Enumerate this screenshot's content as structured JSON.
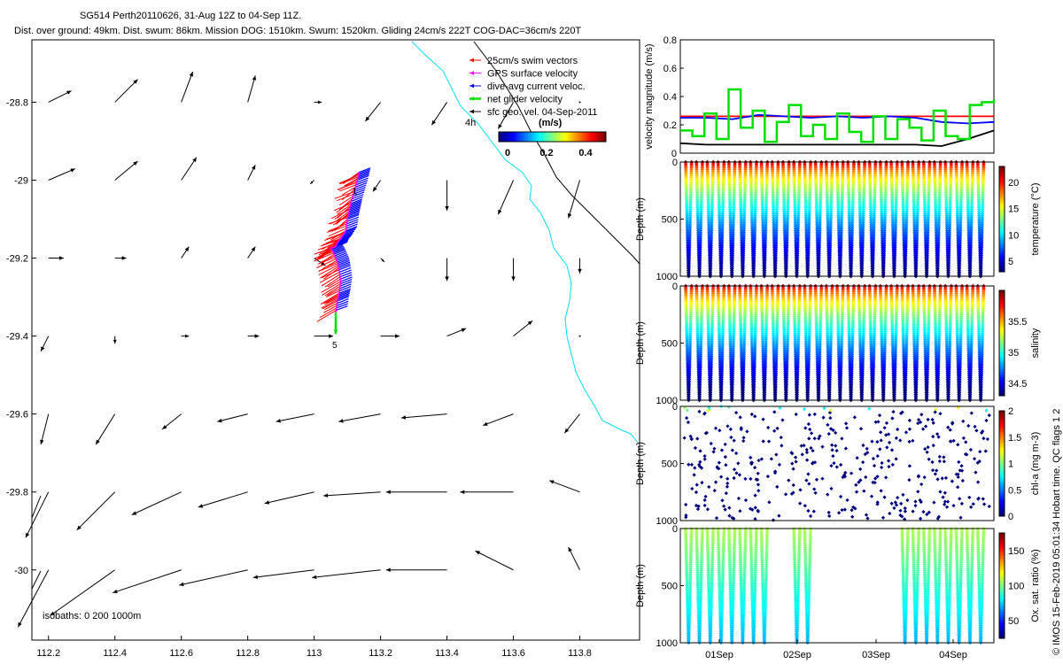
{
  "header": {
    "title": "SG514 Perth20110626, 31-Aug 12Z to 04-Sep 11Z.",
    "subtitle": "Dist. over ground: 49km. Dist. swum: 86km. Mission DOG: 1510km. Swum: 1520km. Gliding 24cm/s 222T COG-DAC=36cm/s 220T"
  },
  "copyright": "© IMOS 15-Feb-2019 05:01:34 Hobart time. QC flags 1 2",
  "colors": {
    "swim": "#ff0000",
    "gps": "#ff00ff",
    "dac": "#0000ff",
    "net": "#00e000",
    "sfc": "#000000",
    "coast": "#00e0ff",
    "red_line": "#ff0000"
  },
  "chart_data": [
    {
      "type": "map-vector",
      "name": "track-map",
      "xlim": [
        112.15,
        113.98
      ],
      "ylim": [
        -30.18,
        -28.64
      ],
      "x_ticks": [
        "112.2",
        "112.4",
        "112.6",
        "112.8",
        "113",
        "113.2",
        "113.4",
        "113.6",
        "113.8"
      ],
      "y_ticks": [
        "-28.8",
        "-29",
        "-29.2",
        "-29.4",
        "-29.6",
        "-29.8",
        "-30"
      ],
      "legend": {
        "items": [
          "25cm/s swim vectors",
          "GPS surface velocity",
          "dive-avg current veloc.",
          "net glider velocity",
          "sfc geo. vel. 04-Sep-2011"
        ],
        "units": "(m/s)",
        "scale_ticks": [
          "0",
          "0.2",
          "0.4"
        ],
        "marker_label": "4h"
      },
      "isobaths_label": "isobaths: 0   200   1000m",
      "point_labels": [
        "1",
        "5"
      ],
      "sfc_vectors": {
        "lons": [
          112.2,
          112.4,
          112.6,
          112.8,
          113.0,
          113.2,
          113.4,
          113.6,
          113.8
        ],
        "lats": [
          -28.8,
          -29.0,
          -29.2,
          -29.4,
          -29.6,
          -29.8,
          -30.0
        ],
        "u": [
          [
            0.06,
            0.06,
            0.03,
            0.02,
            0.02,
            -0.04,
            -0.04,
            -0.04,
            0
          ],
          [
            0.07,
            0.06,
            0.04,
            0.02,
            -0.01,
            -0.02,
            0,
            -0.04,
            -0.03
          ],
          [
            0.04,
            0.03,
            0.02,
            0.02,
            0.03,
            0.01,
            0,
            0,
            0
          ],
          [
            -0.02,
            0,
            0.02,
            0.03,
            0.05,
            0.05,
            0.05,
            0.05,
            0
          ],
          [
            -0.02,
            -0.05,
            -0.05,
            -0.08,
            -0.1,
            -0.11,
            -0.12,
            -0.08,
            -0.04
          ],
          [
            -0.06,
            -0.1,
            -0.13,
            -0.13,
            -0.13,
            -0.15,
            -0.16,
            -0.14,
            -0.08
          ],
          [
            -0.08,
            -0.17,
            -0.18,
            -0.18,
            -0.16,
            -0.18,
            -0.16,
            -0.1,
            -0.03
          ]
        ],
        "v": [
          [
            0.03,
            0.06,
            0.08,
            0.07,
            0,
            -0.05,
            -0.06,
            -0.07,
            0
          ],
          [
            0.03,
            0.05,
            0.06,
            0.04,
            -0.01,
            -0.03,
            -0.08,
            -0.09,
            -0.1
          ],
          [
            0,
            0,
            0.03,
            0.03,
            -0.02,
            -0.01,
            -0.06,
            -0.06,
            -0.04
          ],
          [
            -0.04,
            -0.02,
            0,
            0,
            0,
            0,
            0.02,
            0.04,
            0
          ],
          [
            -0.08,
            -0.08,
            -0.04,
            -0.02,
            -0.02,
            -0.02,
            -0.01,
            -0.03,
            -0.05
          ],
          [
            -0.12,
            -0.1,
            -0.06,
            -0.04,
            -0.03,
            -0.01,
            0,
            0,
            0.03
          ],
          [
            -0.15,
            -0.12,
            -0.06,
            -0.04,
            -0.02,
            -0.02,
            0,
            0.05,
            0.06
          ]
        ]
      },
      "track": {
        "lon": [
          113.135,
          113.13,
          113.12,
          113.11,
          113.105,
          113.1,
          113.095,
          113.08,
          113.07,
          113.065,
          113.05,
          113.06,
          113.07,
          113.075,
          113.08,
          113.075,
          113.07,
          113.065
        ],
        "lat": [
          -28.98,
          -29.0,
          -29.03,
          -29.06,
          -29.08,
          -29.1,
          -29.13,
          -29.15,
          -29.16,
          -29.17,
          -29.175,
          -29.19,
          -29.21,
          -29.23,
          -29.26,
          -29.29,
          -29.31,
          -29.34
        ]
      }
    },
    {
      "type": "line",
      "name": "velocity-magnitude",
      "ylabel": "velocity magnitude (m/s)",
      "ylim": [
        0,
        0.8
      ],
      "y_ticks": [
        "0",
        "0.2",
        "0.4",
        "0.6",
        "0.8"
      ],
      "series": [
        {
          "color": "#ff0000",
          "values": [
            0.26,
            0.26,
            0.26,
            0.26,
            0.26,
            0.26,
            0.26,
            0.26,
            0.26,
            0.26,
            0.26,
            0.26,
            0.26
          ]
        },
        {
          "color": "#0000ff",
          "values": [
            0.25,
            0.25,
            0.24,
            0.27,
            0.26,
            0.25,
            0.26,
            0.25,
            0.26,
            0.25,
            0.22,
            0.21,
            0.22
          ]
        },
        {
          "color": "#000000",
          "values": [
            0.07,
            0.06,
            0.06,
            0.06,
            0.06,
            0.06,
            0.06,
            0.06,
            0.06,
            0.06,
            0.05,
            0.1,
            0.16
          ]
        },
        {
          "color": "#00e000",
          "values": [
            0.16,
            0.12,
            0.28,
            0.1,
            0.45,
            0.18,
            0.3,
            0.08,
            0.22,
            0.34,
            0.12,
            0.2,
            0.1,
            0.28,
            0.15,
            0.08,
            0.26,
            0.1,
            0.24,
            0.18,
            0.09,
            0.3,
            0.12,
            0.1,
            0.34,
            0.36,
            0.38
          ]
        }
      ]
    },
    {
      "type": "heatmap",
      "name": "temperature",
      "ylabel": "Depth (m)",
      "y_ticks": [
        "0",
        "500",
        "1000"
      ],
      "ylim": [
        1000,
        0
      ],
      "colorbar_label": "temperature (°C)",
      "colorbar_ticks": [
        "5",
        "10",
        "15",
        "20"
      ],
      "clim": [
        3,
        23
      ],
      "surface_value": 23,
      "bottom_value": 4,
      "vertical_profile": true
    },
    {
      "type": "heatmap",
      "name": "salinity",
      "ylabel": "Depth (m)",
      "y_ticks": [
        "0",
        "500",
        "1000"
      ],
      "ylim": [
        1000,
        0
      ],
      "colorbar_label": "salinity",
      "colorbar_ticks": [
        "34.5",
        "35",
        "35.5"
      ],
      "clim": [
        34.3,
        36.0
      ],
      "vertical_profile": true
    },
    {
      "type": "scatter",
      "name": "chl-a",
      "ylabel": "Depth (m)",
      "y_ticks": [
        "0",
        "500",
        "1000"
      ],
      "ylim": [
        1000,
        0
      ],
      "colorbar_label": "chl-a (mg m-3)",
      "colorbar_ticks": [
        "0",
        "0.5",
        "1",
        "1.5",
        "2"
      ],
      "clim": [
        0,
        2
      ]
    },
    {
      "type": "heatmap",
      "name": "oxygen",
      "ylabel": "Depth (m)",
      "y_ticks": [
        "0",
        "500",
        "1000"
      ],
      "ylim": [
        1000,
        0
      ],
      "colorbar_label": "Ox. sat. ratio (%)",
      "colorbar_ticks": [
        "50",
        "100",
        "150"
      ],
      "clim": [
        25,
        175
      ],
      "x_ticks": [
        "01Sep",
        "02Sep",
        "03Sep",
        "04Sep"
      ]
    }
  ]
}
